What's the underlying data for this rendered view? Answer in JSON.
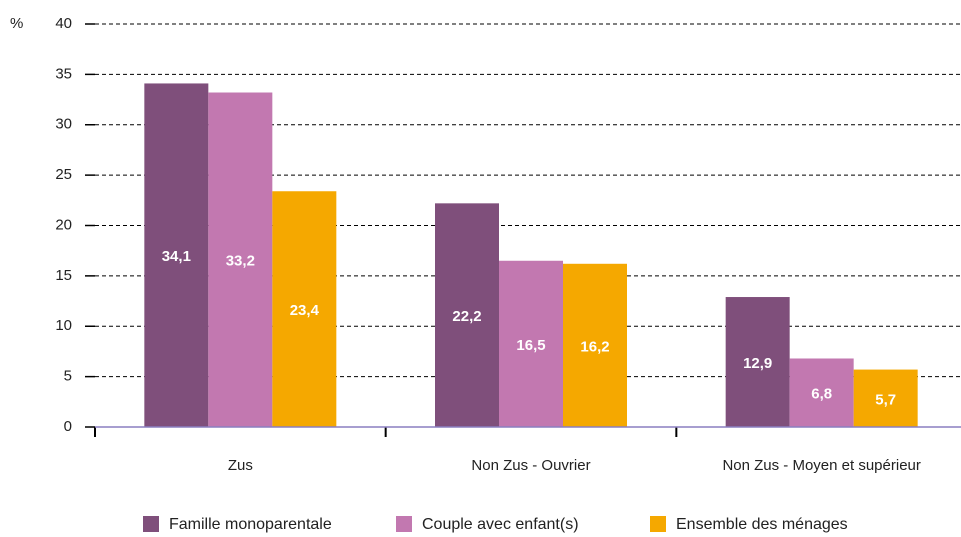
{
  "chart_data": {
    "type": "bar",
    "y_label": "%",
    "categories": [
      "Zus",
      "Non Zus - Ouvrier",
      "Non Zus - Moyen et supérieur"
    ],
    "series": [
      {
        "name": "Famille monoparentale",
        "color": "#7f4f7b",
        "values": [
          34.1,
          22.2,
          12.9
        ],
        "value_labels": [
          "34,1",
          "22,2",
          "12,9"
        ]
      },
      {
        "name": "Couple avec enfant(s)",
        "color": "#c278b0",
        "values": [
          33.2,
          16.5,
          6.8
        ],
        "value_labels": [
          "33,2",
          "16,5",
          "6,8"
        ]
      },
      {
        "name": "Ensemble des ménages",
        "color": "#f5a800",
        "values": [
          23.4,
          16.2,
          5.7
        ],
        "value_labels": [
          "23,4",
          "16,2",
          "5,7"
        ]
      }
    ],
    "ylim": [
      0,
      40
    ],
    "yticks": [
      0,
      5,
      10,
      15,
      20,
      25,
      30,
      35,
      40
    ],
    "grid": true,
    "legend": "bottom"
  }
}
